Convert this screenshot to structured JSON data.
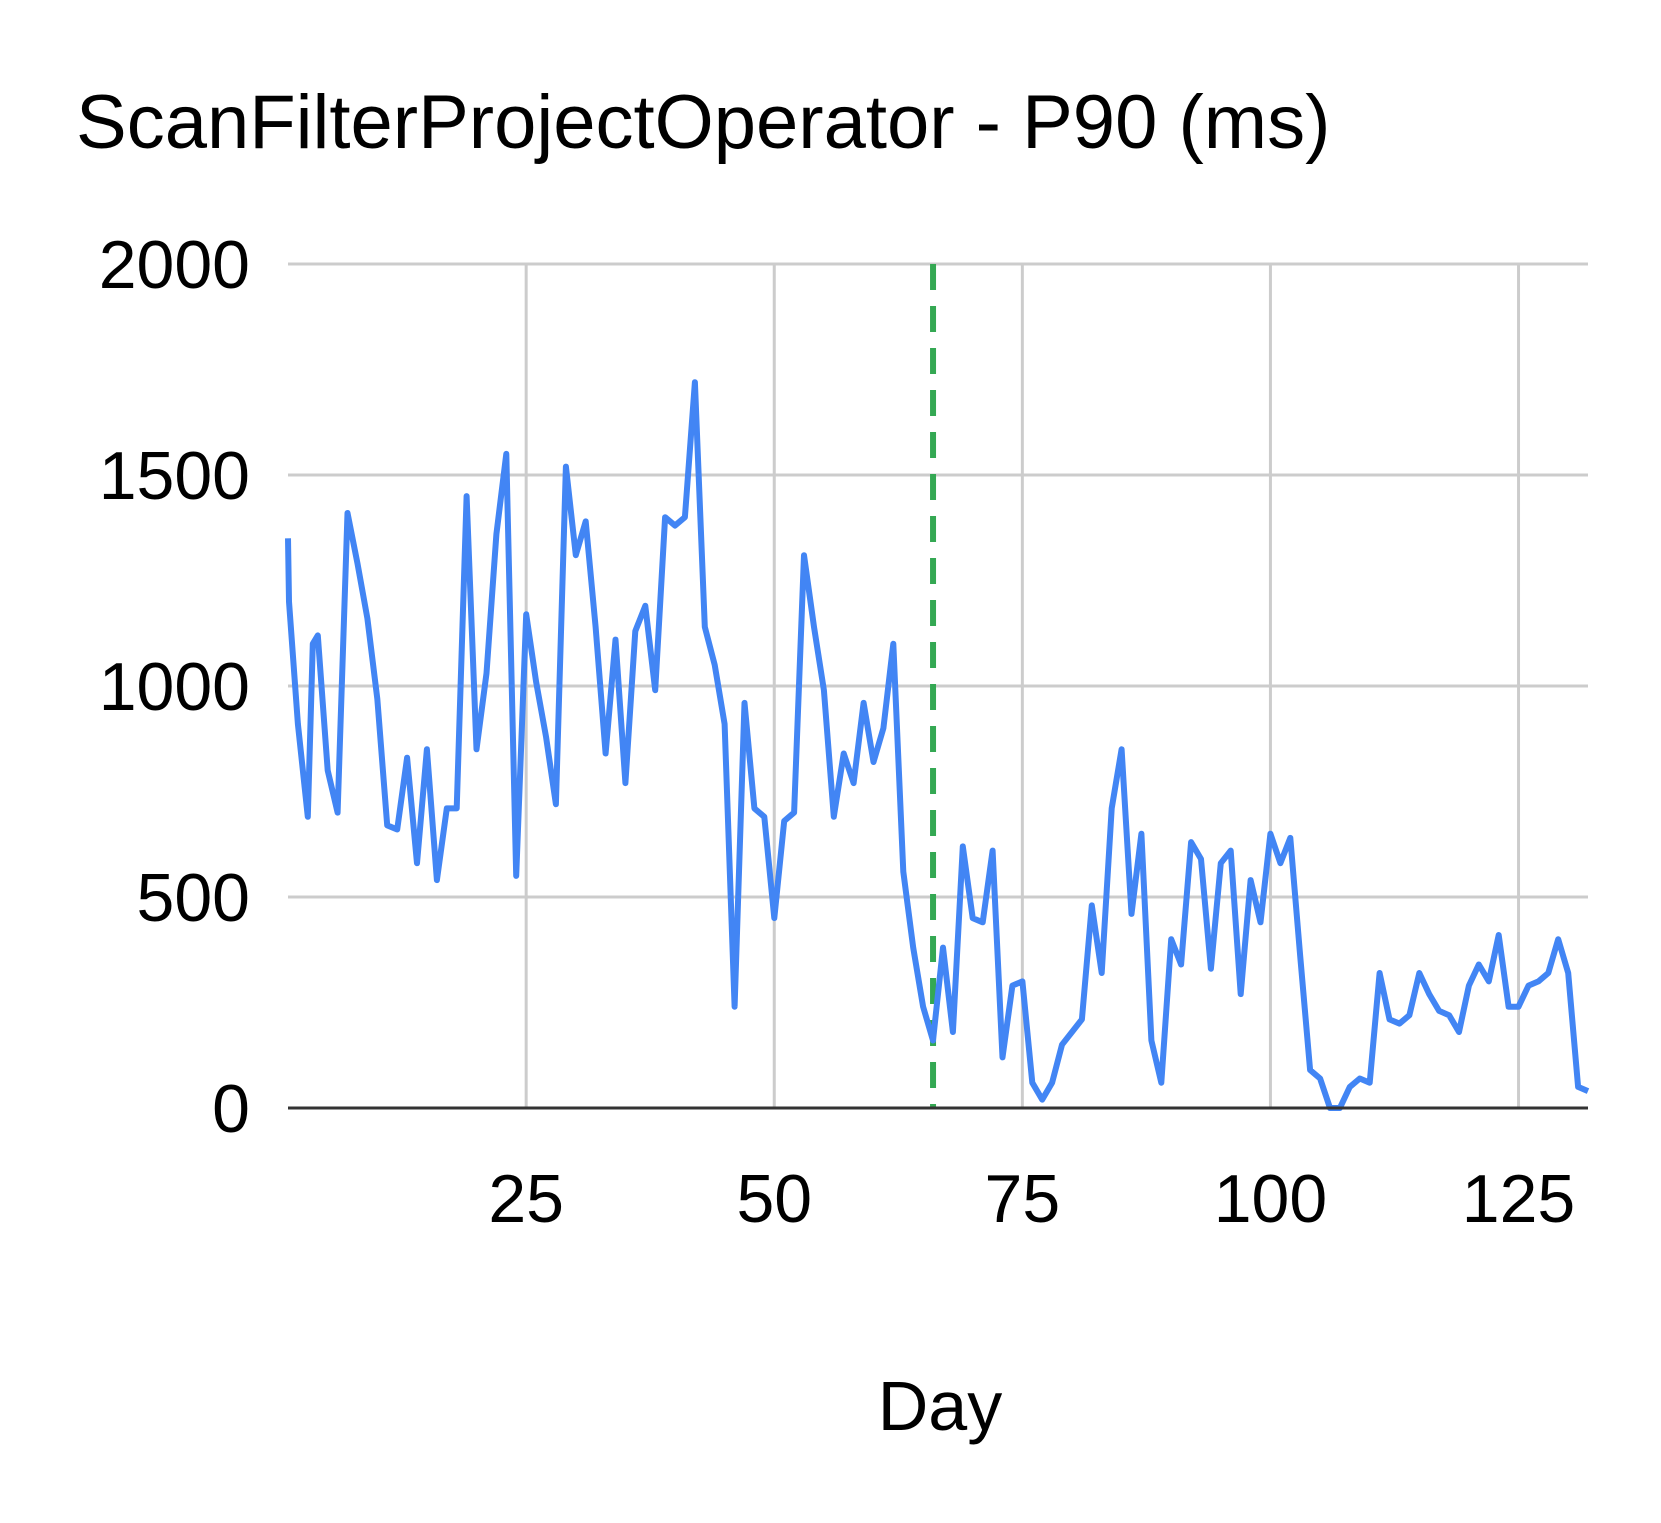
{
  "chart_data": {
    "type": "line",
    "title": "ScanFilterProjectOperator - P90 (ms)",
    "xlabel": "Day",
    "ylabel": "",
    "xlim": [
      1,
      132
    ],
    "ylim": [
      0,
      2000
    ],
    "x_ticks": [
      25,
      50,
      75,
      100,
      125
    ],
    "y_ticks": [
      0,
      500,
      1000,
      1500,
      2000
    ],
    "grid": true,
    "legend": "none",
    "colors": {
      "series": "#4285F4",
      "marker": "#34A853",
      "grid": "#cccccc",
      "baseline": "#333333"
    },
    "vertical_marker": {
      "x": 66,
      "style": "dashed"
    },
    "series": [
      {
        "values": [
          [
            1,
            1350
          ],
          [
            1.1,
            1200
          ],
          [
            2,
            910
          ],
          [
            3,
            690
          ],
          [
            3.5,
            1100
          ],
          [
            4,
            1120
          ],
          [
            5,
            800
          ],
          [
            6,
            700
          ],
          [
            7,
            1410
          ],
          [
            8,
            1290
          ],
          [
            9,
            1160
          ],
          [
            10,
            970
          ],
          [
            11,
            670
          ],
          [
            12,
            660
          ],
          [
            13,
            830
          ],
          [
            14,
            580
          ],
          [
            15,
            850
          ],
          [
            16,
            540
          ],
          [
            17,
            710
          ],
          [
            18,
            710
          ],
          [
            19,
            1450
          ],
          [
            20,
            850
          ],
          [
            21,
            1030
          ],
          [
            22,
            1360
          ],
          [
            23,
            1550
          ],
          [
            24,
            550
          ],
          [
            25,
            1170
          ],
          [
            26,
            1010
          ],
          [
            27,
            880
          ],
          [
            28,
            720
          ],
          [
            29,
            1520
          ],
          [
            30,
            1310
          ],
          [
            31,
            1390
          ],
          [
            32,
            1140
          ],
          [
            33,
            840
          ],
          [
            34,
            1110
          ],
          [
            35,
            770
          ],
          [
            36,
            1130
          ],
          [
            37,
            1190
          ],
          [
            38,
            990
          ],
          [
            39,
            1400
          ],
          [
            40,
            1380
          ],
          [
            41,
            1400
          ],
          [
            42,
            1720
          ],
          [
            43,
            1140
          ],
          [
            44,
            1050
          ],
          [
            45,
            910
          ],
          [
            46,
            240
          ],
          [
            47,
            960
          ],
          [
            48,
            710
          ],
          [
            49,
            690
          ],
          [
            50,
            450
          ],
          [
            51,
            680
          ],
          [
            52,
            700
          ],
          [
            53,
            1310
          ],
          [
            54,
            1140
          ],
          [
            55,
            990
          ],
          [
            56,
            690
          ],
          [
            57,
            840
          ],
          [
            58,
            770
          ],
          [
            59,
            960
          ],
          [
            60,
            820
          ],
          [
            61,
            900
          ],
          [
            62,
            1100
          ],
          [
            63,
            560
          ],
          [
            64,
            380
          ],
          [
            65,
            240
          ],
          [
            66,
            160
          ],
          [
            67,
            380
          ],
          [
            68,
            180
          ],
          [
            69,
            620
          ],
          [
            70,
            450
          ],
          [
            71,
            440
          ],
          [
            72,
            610
          ],
          [
            73,
            120
          ],
          [
            74,
            290
          ],
          [
            75,
            300
          ],
          [
            76,
            60
          ],
          [
            77,
            20
          ],
          [
            78,
            60
          ],
          [
            79,
            150
          ],
          [
            80,
            180
          ],
          [
            81,
            210
          ],
          [
            82,
            480
          ],
          [
            83,
            320
          ],
          [
            84,
            710
          ],
          [
            85,
            850
          ],
          [
            86,
            460
          ],
          [
            87,
            650
          ],
          [
            88,
            160
          ],
          [
            89,
            60
          ],
          [
            90,
            400
          ],
          [
            91,
            340
          ],
          [
            92,
            630
          ],
          [
            93,
            590
          ],
          [
            94,
            330
          ],
          [
            95,
            580
          ],
          [
            96,
            610
          ],
          [
            97,
            270
          ],
          [
            98,
            540
          ],
          [
            99,
            440
          ],
          [
            100,
            650
          ],
          [
            101,
            580
          ],
          [
            102,
            640
          ],
          [
            103,
            360
          ],
          [
            104,
            90
          ],
          [
            105,
            70
          ],
          [
            106,
            0
          ],
          [
            107,
            0
          ],
          [
            108,
            50
          ],
          [
            109,
            70
          ],
          [
            110,
            60
          ],
          [
            111,
            320
          ],
          [
            112,
            210
          ],
          [
            113,
            200
          ],
          [
            114,
            220
          ],
          [
            115,
            320
          ],
          [
            116,
            270
          ],
          [
            117,
            230
          ],
          [
            118,
            220
          ],
          [
            119,
            180
          ],
          [
            120,
            290
          ],
          [
            121,
            340
          ],
          [
            122,
            300
          ],
          [
            123,
            410
          ],
          [
            124,
            240
          ],
          [
            125,
            240
          ],
          [
            126,
            290
          ],
          [
            127,
            300
          ],
          [
            128,
            320
          ],
          [
            129,
            400
          ],
          [
            130,
            320
          ],
          [
            131,
            50
          ],
          [
            132,
            40
          ]
        ]
      }
    ]
  }
}
